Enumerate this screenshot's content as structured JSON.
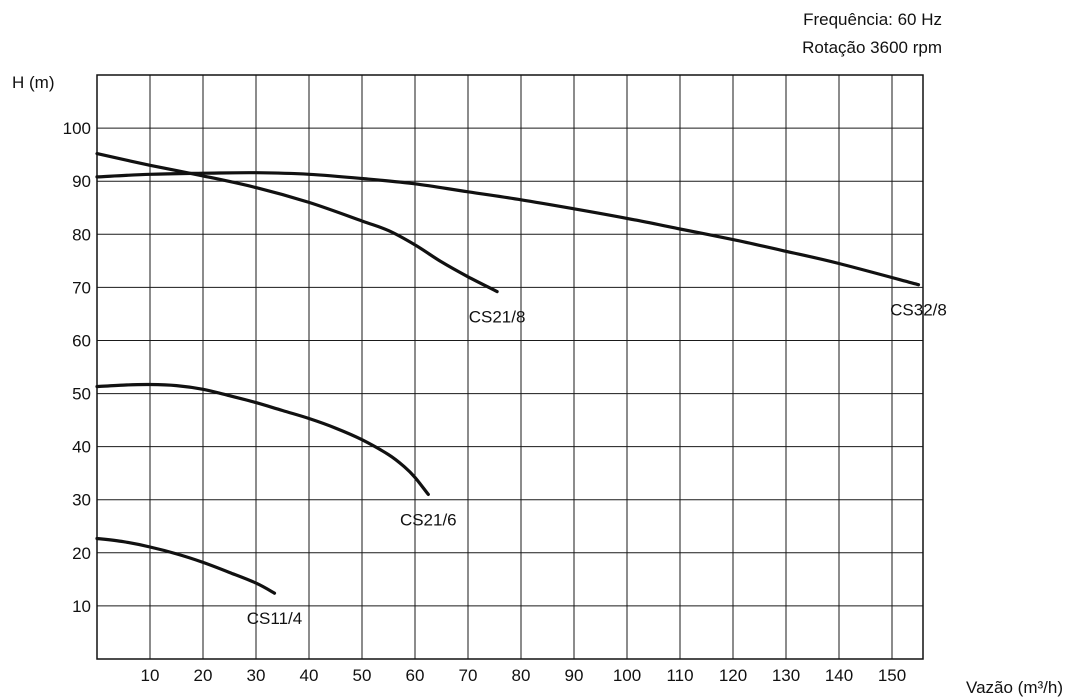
{
  "chart_data": {
    "type": "line",
    "notes": [
      "Frequência: 60 Hz",
      "Rotação 3600 rpm"
    ],
    "ylabel": "H (m)",
    "xlabel": "Vazão (m³/h)",
    "xlim": [
      0,
      155
    ],
    "ylim": [
      0,
      110
    ],
    "x_ticks": [
      10,
      20,
      30,
      40,
      50,
      60,
      70,
      80,
      90,
      100,
      110,
      120,
      130,
      140,
      150
    ],
    "y_ticks": [
      10,
      20,
      30,
      40,
      50,
      60,
      70,
      80,
      90,
      100
    ],
    "grid": true,
    "series": [
      {
        "name": "CS21/8",
        "x": [
          0,
          10,
          20,
          30,
          40,
          50,
          55,
          60,
          65,
          70,
          75.5
        ],
        "y": [
          95.2,
          93,
          91,
          88.8,
          86,
          82.5,
          80.7,
          78,
          74.8,
          72,
          69.2
        ]
      },
      {
        "name": "CS32/8",
        "x": [
          0,
          10,
          20,
          30,
          40,
          50,
          60,
          70,
          80,
          90,
          100,
          110,
          120,
          130,
          140,
          155
        ],
        "y": [
          90.8,
          91.3,
          91.5,
          91.6,
          91.3,
          90.5,
          89.5,
          88,
          86.5,
          84.8,
          83,
          81,
          79,
          76.8,
          74.5,
          70.5
        ]
      },
      {
        "name": "CS21/6",
        "x": [
          0,
          5,
          10,
          15,
          20,
          25,
          30,
          35,
          40,
          45,
          50,
          55,
          58,
          60,
          62.5
        ],
        "y": [
          51.3,
          51.6,
          51.7,
          51.5,
          50.8,
          49.6,
          48.3,
          46.8,
          45.3,
          43.5,
          41.3,
          38.5,
          36.2,
          34.2,
          31
        ]
      },
      {
        "name": "CS11/4",
        "x": [
          0,
          5,
          10,
          15,
          20,
          25,
          30,
          33.5
        ],
        "y": [
          22.7,
          22.1,
          21.1,
          19.8,
          18.2,
          16.3,
          14.3,
          12.4
        ]
      }
    ]
  }
}
